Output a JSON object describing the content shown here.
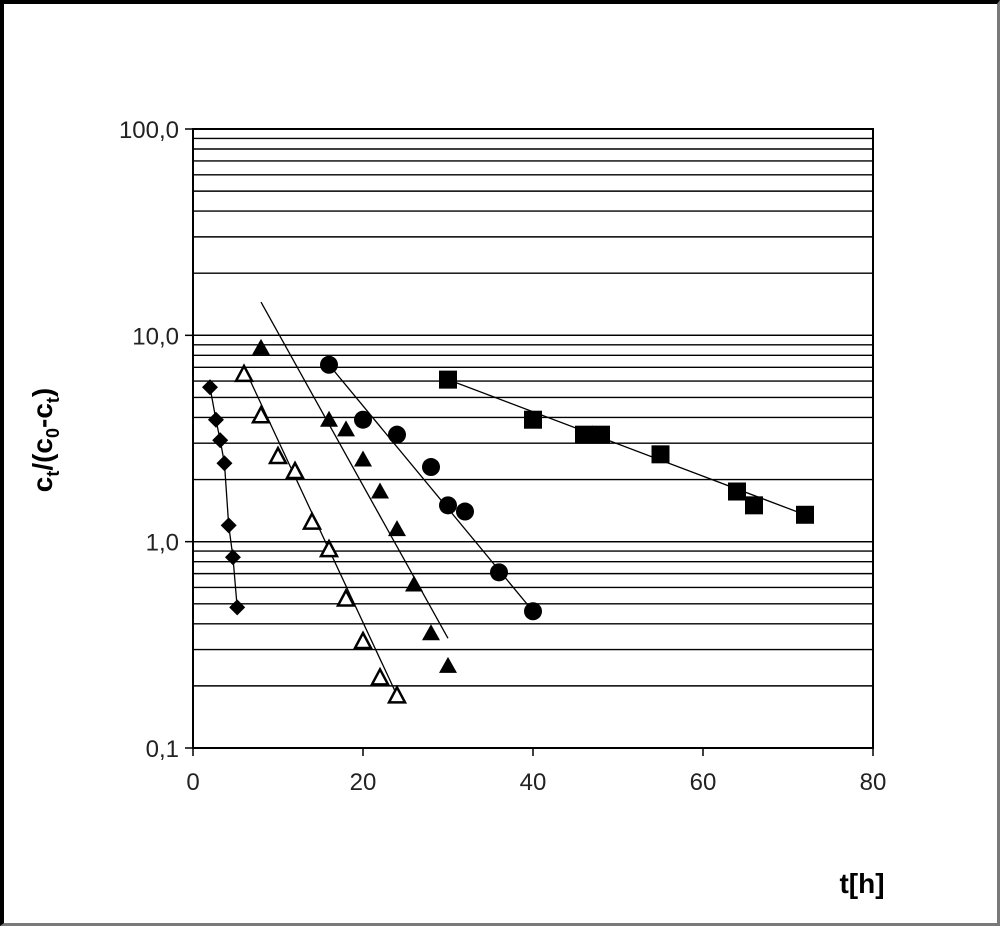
{
  "chart_data": {
    "type": "scatter",
    "title": "",
    "xlabel": "t[h]",
    "ylabel": {
      "c": "c",
      "t": "t",
      "open": "/(c",
      "zero": "0",
      "dash": "-c",
      "t2": "t",
      "close": ")"
    },
    "x_scale": "linear",
    "y_scale": "log",
    "xlim": [
      0,
      80
    ],
    "ylim": [
      0.1,
      100
    ],
    "x_ticks": [
      0,
      20,
      40,
      60,
      80
    ],
    "x_tick_labels": [
      "0",
      "20",
      "40",
      "60",
      "80"
    ],
    "y_ticks": [
      0.1,
      1,
      10,
      100
    ],
    "y_tick_labels": [
      "0,1",
      "1,0",
      "10,0",
      "100,0"
    ],
    "grid": "horizontal lines at each minor log tick",
    "legend": "none",
    "series": [
      {
        "marker": "diamond-filled",
        "points": [
          [
            2,
            5.6
          ],
          [
            2.7,
            3.9
          ],
          [
            3.2,
            3.1
          ],
          [
            3.7,
            2.4
          ],
          [
            4.2,
            1.2
          ],
          [
            4.7,
            0.84
          ],
          [
            5.2,
            0.48
          ]
        ],
        "trend": [
          [
            2,
            5.6
          ],
          [
            2.7,
            3.9
          ],
          [
            3.2,
            3.1
          ],
          [
            3.7,
            2.4
          ],
          [
            4.2,
            1.2
          ],
          [
            4.7,
            0.84
          ],
          [
            5.2,
            0.48
          ]
        ]
      },
      {
        "marker": "triangle-open",
        "points": [
          [
            6,
            6.5
          ],
          [
            8,
            4.1
          ],
          [
            10,
            2.6
          ],
          [
            12,
            2.2
          ],
          [
            14,
            1.25
          ],
          [
            16,
            0.92
          ],
          [
            18,
            0.53
          ],
          [
            20,
            0.33
          ],
          [
            22,
            0.22
          ],
          [
            24,
            0.18
          ]
        ],
        "trend": [
          [
            6,
            7.0
          ],
          [
            24,
            0.18
          ]
        ]
      },
      {
        "marker": "triangle-filled",
        "points": [
          [
            8,
            8.7
          ],
          [
            16,
            3.9
          ],
          [
            18,
            3.5
          ],
          [
            20,
            2.5
          ],
          [
            22,
            1.75
          ],
          [
            24,
            1.15
          ],
          [
            26,
            0.62
          ],
          [
            28,
            0.36
          ],
          [
            30,
            0.25
          ]
        ],
        "trend": [
          [
            8,
            14.5
          ],
          [
            30,
            0.34
          ]
        ]
      },
      {
        "marker": "circle-filled",
        "points": [
          [
            16,
            7.2
          ],
          [
            20,
            3.9
          ],
          [
            24,
            3.3
          ],
          [
            28,
            2.3
          ],
          [
            30,
            1.5
          ],
          [
            32,
            1.4
          ],
          [
            36,
            0.71
          ],
          [
            40,
            0.46
          ]
        ],
        "trend": [
          [
            16,
            7.2
          ],
          [
            40,
            0.46
          ]
        ]
      },
      {
        "marker": "square-filled",
        "points": [
          [
            30,
            6.1
          ],
          [
            40,
            3.9
          ],
          [
            46,
            3.3
          ],
          [
            48,
            3.3
          ],
          [
            55,
            2.65
          ],
          [
            64,
            1.75
          ],
          [
            66,
            1.5
          ],
          [
            72,
            1.35
          ]
        ],
        "trend": [
          [
            30,
            6.1
          ],
          [
            72,
            1.35
          ]
        ]
      }
    ]
  }
}
